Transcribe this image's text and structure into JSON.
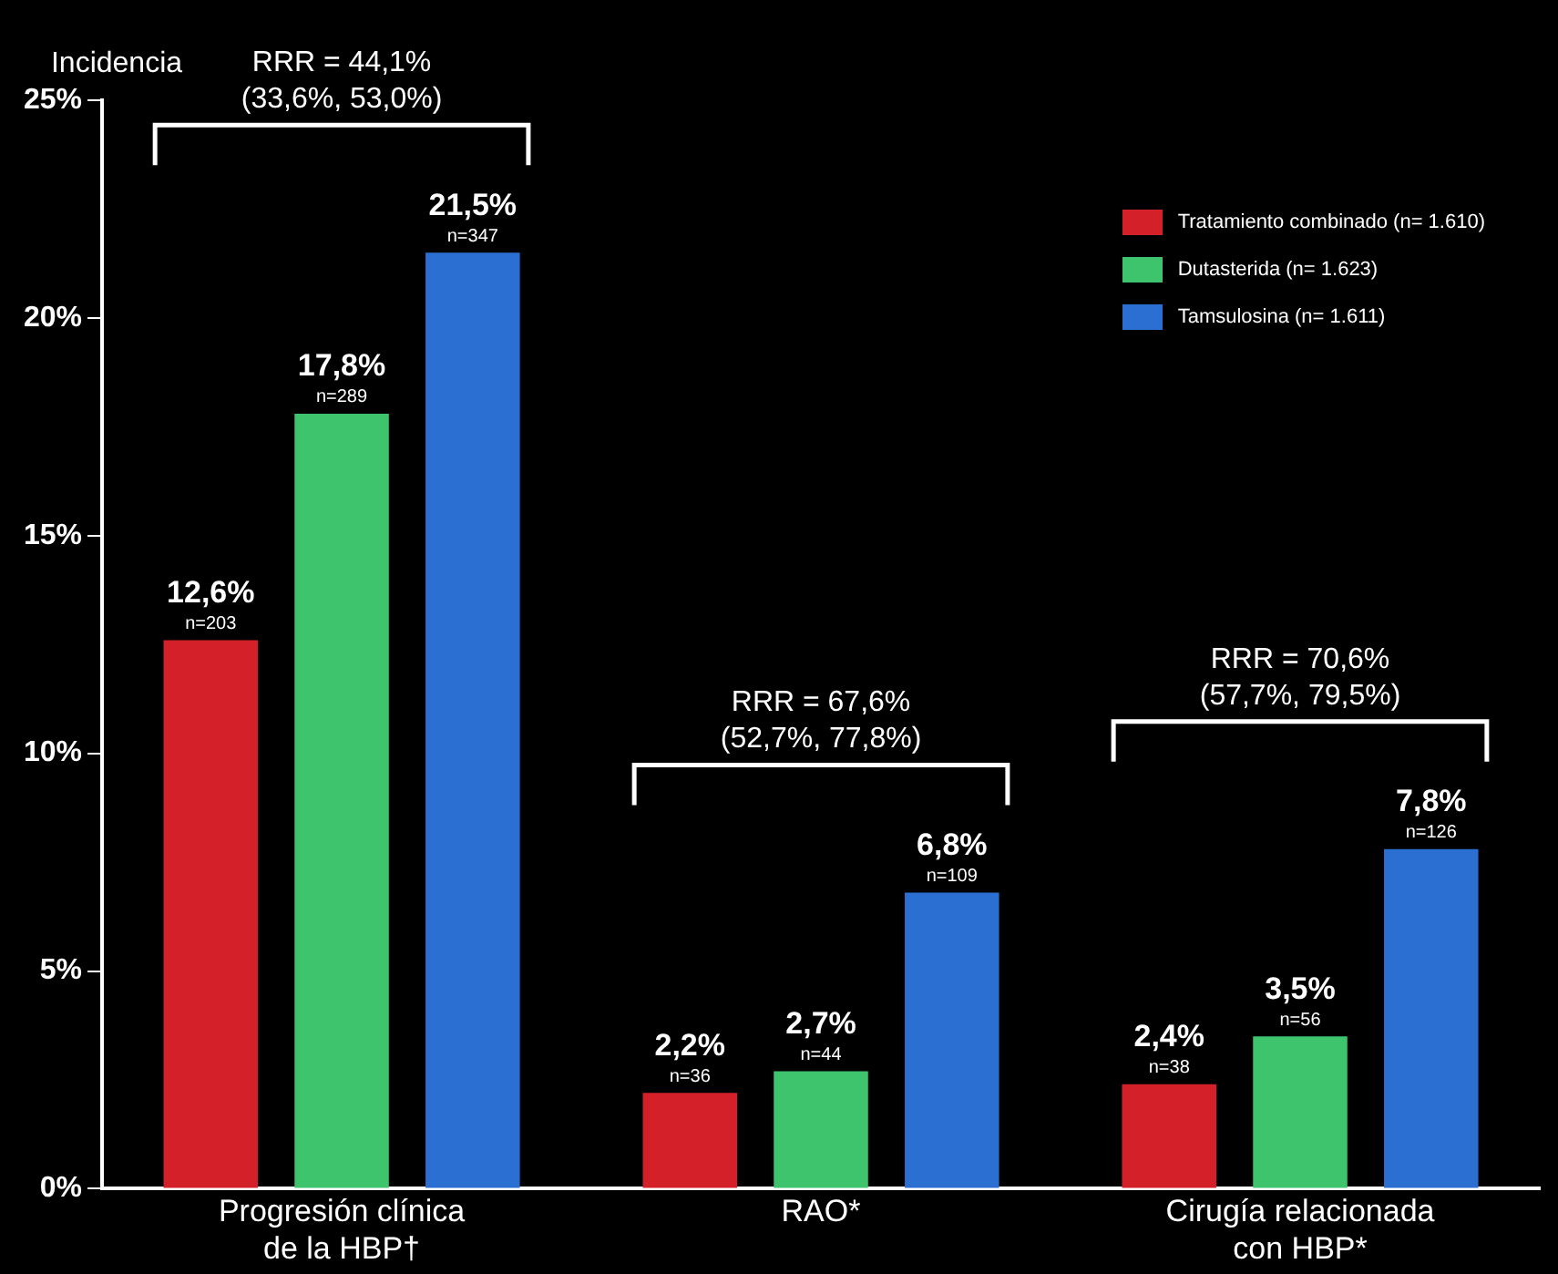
{
  "chart_data": {
    "type": "bar",
    "ylabel": "Incidencia",
    "categories": [
      "Progresión clínica\nde la HBP†",
      "RAO*",
      "Cirugía relacionada\ncon HBP*"
    ],
    "series": [
      {
        "name": "Tratamiento combinado (n= 1.610)",
        "color": "#d42029",
        "values": [
          12.6,
          2.2,
          2.4
        ],
        "value_labels": [
          "12,6%\nn=203",
          "2,2%\nn=36",
          "2,4%\nn=38"
        ]
      },
      {
        "name": "Dutasterida (n= 1.623)",
        "color": "#3fc46e",
        "values": [
          17.8,
          2.7,
          3.5
        ],
        "value_labels": [
          "17,8%\nn=289",
          "2,7%\nn=44",
          "3,5%\nn=56"
        ]
      },
      {
        "name": "Tamsulosina (n= 1.611)",
        "color": "#2b6fd2",
        "values": [
          21.5,
          6.8,
          7.8
        ],
        "value_labels": [
          "21,5%\nn=347",
          "6,8%\nn=109",
          "7,8%\nn=126"
        ]
      }
    ],
    "ylim": [
      0,
      25
    ],
    "yticks": [
      {
        "value": 0,
        "label": "0%"
      },
      {
        "value": 5,
        "label": "5%"
      },
      {
        "value": 10,
        "label": "10%"
      },
      {
        "value": 15,
        "label": "15%"
      },
      {
        "value": 20,
        "label": "20%"
      },
      {
        "value": 25,
        "label": "25%"
      }
    ],
    "grid": false,
    "legend": "top right",
    "annotations": [
      "RRR = 44,1%\n(33,6%, 53,0%)",
      "RRR = 67,6%\n(52,7%, 77,8%)",
      "RRR = 70,6%\n(57,7%, 79,5%)"
    ]
  }
}
